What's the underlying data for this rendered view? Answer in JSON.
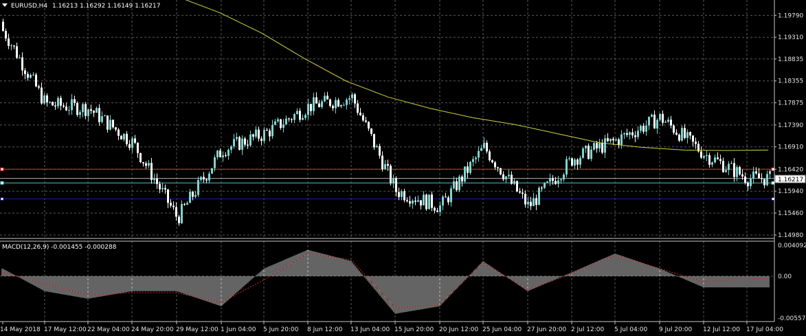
{
  "header": {
    "symbol": "EURUSD,H4",
    "ohlc": "1.16213 1.16292 1.16149 1.16217"
  },
  "macd_header": "MACD(12,26,9) -0.001455 -0.000288",
  "current_price_label": "1.16217",
  "colors": {
    "background": "#000000",
    "grid": "#5a5a5a",
    "bull_candle": "#7fd4d0",
    "bear_candle": "#ffffff",
    "moving_average": "#d4d440",
    "red_level": "#e03030",
    "cyan_level": "#40c8c8",
    "blue_level": "#1a1aa0",
    "white_level": "#b0b0b0",
    "macd_histogram": "#c8c8c8",
    "macd_signal": "#d03030",
    "text": "#e6e6e6"
  },
  "chart_data": [
    {
      "type": "candlestick",
      "title": "EURUSD,H4",
      "y_ticks": [
        "1.19790",
        "1.19310",
        "1.18835",
        "1.18355",
        "1.17875",
        "1.17390",
        "1.16910",
        "1.16420",
        "1.15940",
        "1.15460",
        "1.14980"
      ],
      "ylim": [
        1.1498,
        1.1987
      ],
      "x_ticks": [
        "14 May 2018",
        "17 May 12:00",
        "22 May 04:00",
        "24 May 20:00",
        "29 May 12:00",
        "1 Jun 04:00",
        "5 Jun 20:00",
        "8 Jun 12:00",
        "13 Jun 04:00",
        "15 Jun 20:00",
        "20 Jun 12:00",
        "25 Jun 04:00",
        "27 Jun 20:00",
        "2 Jul 12:00",
        "5 Jul 04:00",
        "9 Jul 20:00",
        "12 Jul 12:00",
        "17 Jul 04:00"
      ],
      "key_closes": [
        {
          "x": "14 May 2018",
          "close": 1.1945
        },
        {
          "x": "17 May 12:00",
          "close": 1.1785
        },
        {
          "x": "22 May 04:00",
          "close": 1.1775
        },
        {
          "x": "24 May 20:00",
          "close": 1.17
        },
        {
          "x": "29 May 12:00",
          "close": 1.1535
        },
        {
          "x": "1 Jun 04:00",
          "close": 1.1685
        },
        {
          "x": "5 Jun 20:00",
          "close": 1.172
        },
        {
          "x": "8 Jun 12:00",
          "close": 1.178
        },
        {
          "x": "13 Jun 04:00",
          "close": 1.18
        },
        {
          "x": "15 Jun 20:00",
          "close": 1.1595
        },
        {
          "x": "20 Jun 12:00",
          "close": 1.156
        },
        {
          "x": "25 Jun 04:00",
          "close": 1.169
        },
        {
          "x": "27 Jun 20:00",
          "close": 1.156
        },
        {
          "x": "2 Jul 12:00",
          "close": 1.1665
        },
        {
          "x": "5 Jul 04:00",
          "close": 1.1705
        },
        {
          "x": "9 Jul 20:00",
          "close": 1.1755
        },
        {
          "x": "12 Jul 12:00",
          "close": 1.1675
        },
        {
          "x": "17 Jul 04:00",
          "close": 1.1622
        }
      ],
      "moving_average": [
        1.202,
        1.1985,
        1.194,
        1.1885,
        1.1835,
        1.18,
        1.1775,
        1.1755,
        1.174,
        1.172,
        1.17,
        1.169,
        1.1684,
        1.1683,
        1.1684
      ],
      "horizontal_levels": [
        {
          "color": "red",
          "price": 1.1642
        },
        {
          "color": "white",
          "price": 1.1622
        },
        {
          "color": "cyan",
          "price": 1.1612
        },
        {
          "color": "blue",
          "price": 1.1577
        }
      ]
    },
    {
      "type": "histogram",
      "title": "MACD(12,26,9) -0.001455 -0.000288",
      "y_ticks": [
        "0.004092",
        "0.00",
        "-0.005576"
      ],
      "ylim": [
        -0.005576,
        0.004092
      ],
      "macd": [
        0.001,
        -0.002,
        -0.003,
        -0.002,
        -0.002,
        -0.004,
        0.001,
        0.0035,
        0.002,
        -0.005,
        -0.004,
        0.002,
        -0.002,
        0.0005,
        0.003,
        0.001,
        -0.0015,
        -0.0015
      ],
      "signal": [
        0.0005,
        -0.001,
        -0.0025,
        -0.0022,
        -0.0022,
        -0.0035,
        -0.0005,
        0.003,
        0.0022,
        -0.0042,
        -0.0038,
        0.0018,
        -0.0018,
        0.0003,
        0.0028,
        0.001,
        -0.0008,
        -0.0003
      ]
    }
  ]
}
